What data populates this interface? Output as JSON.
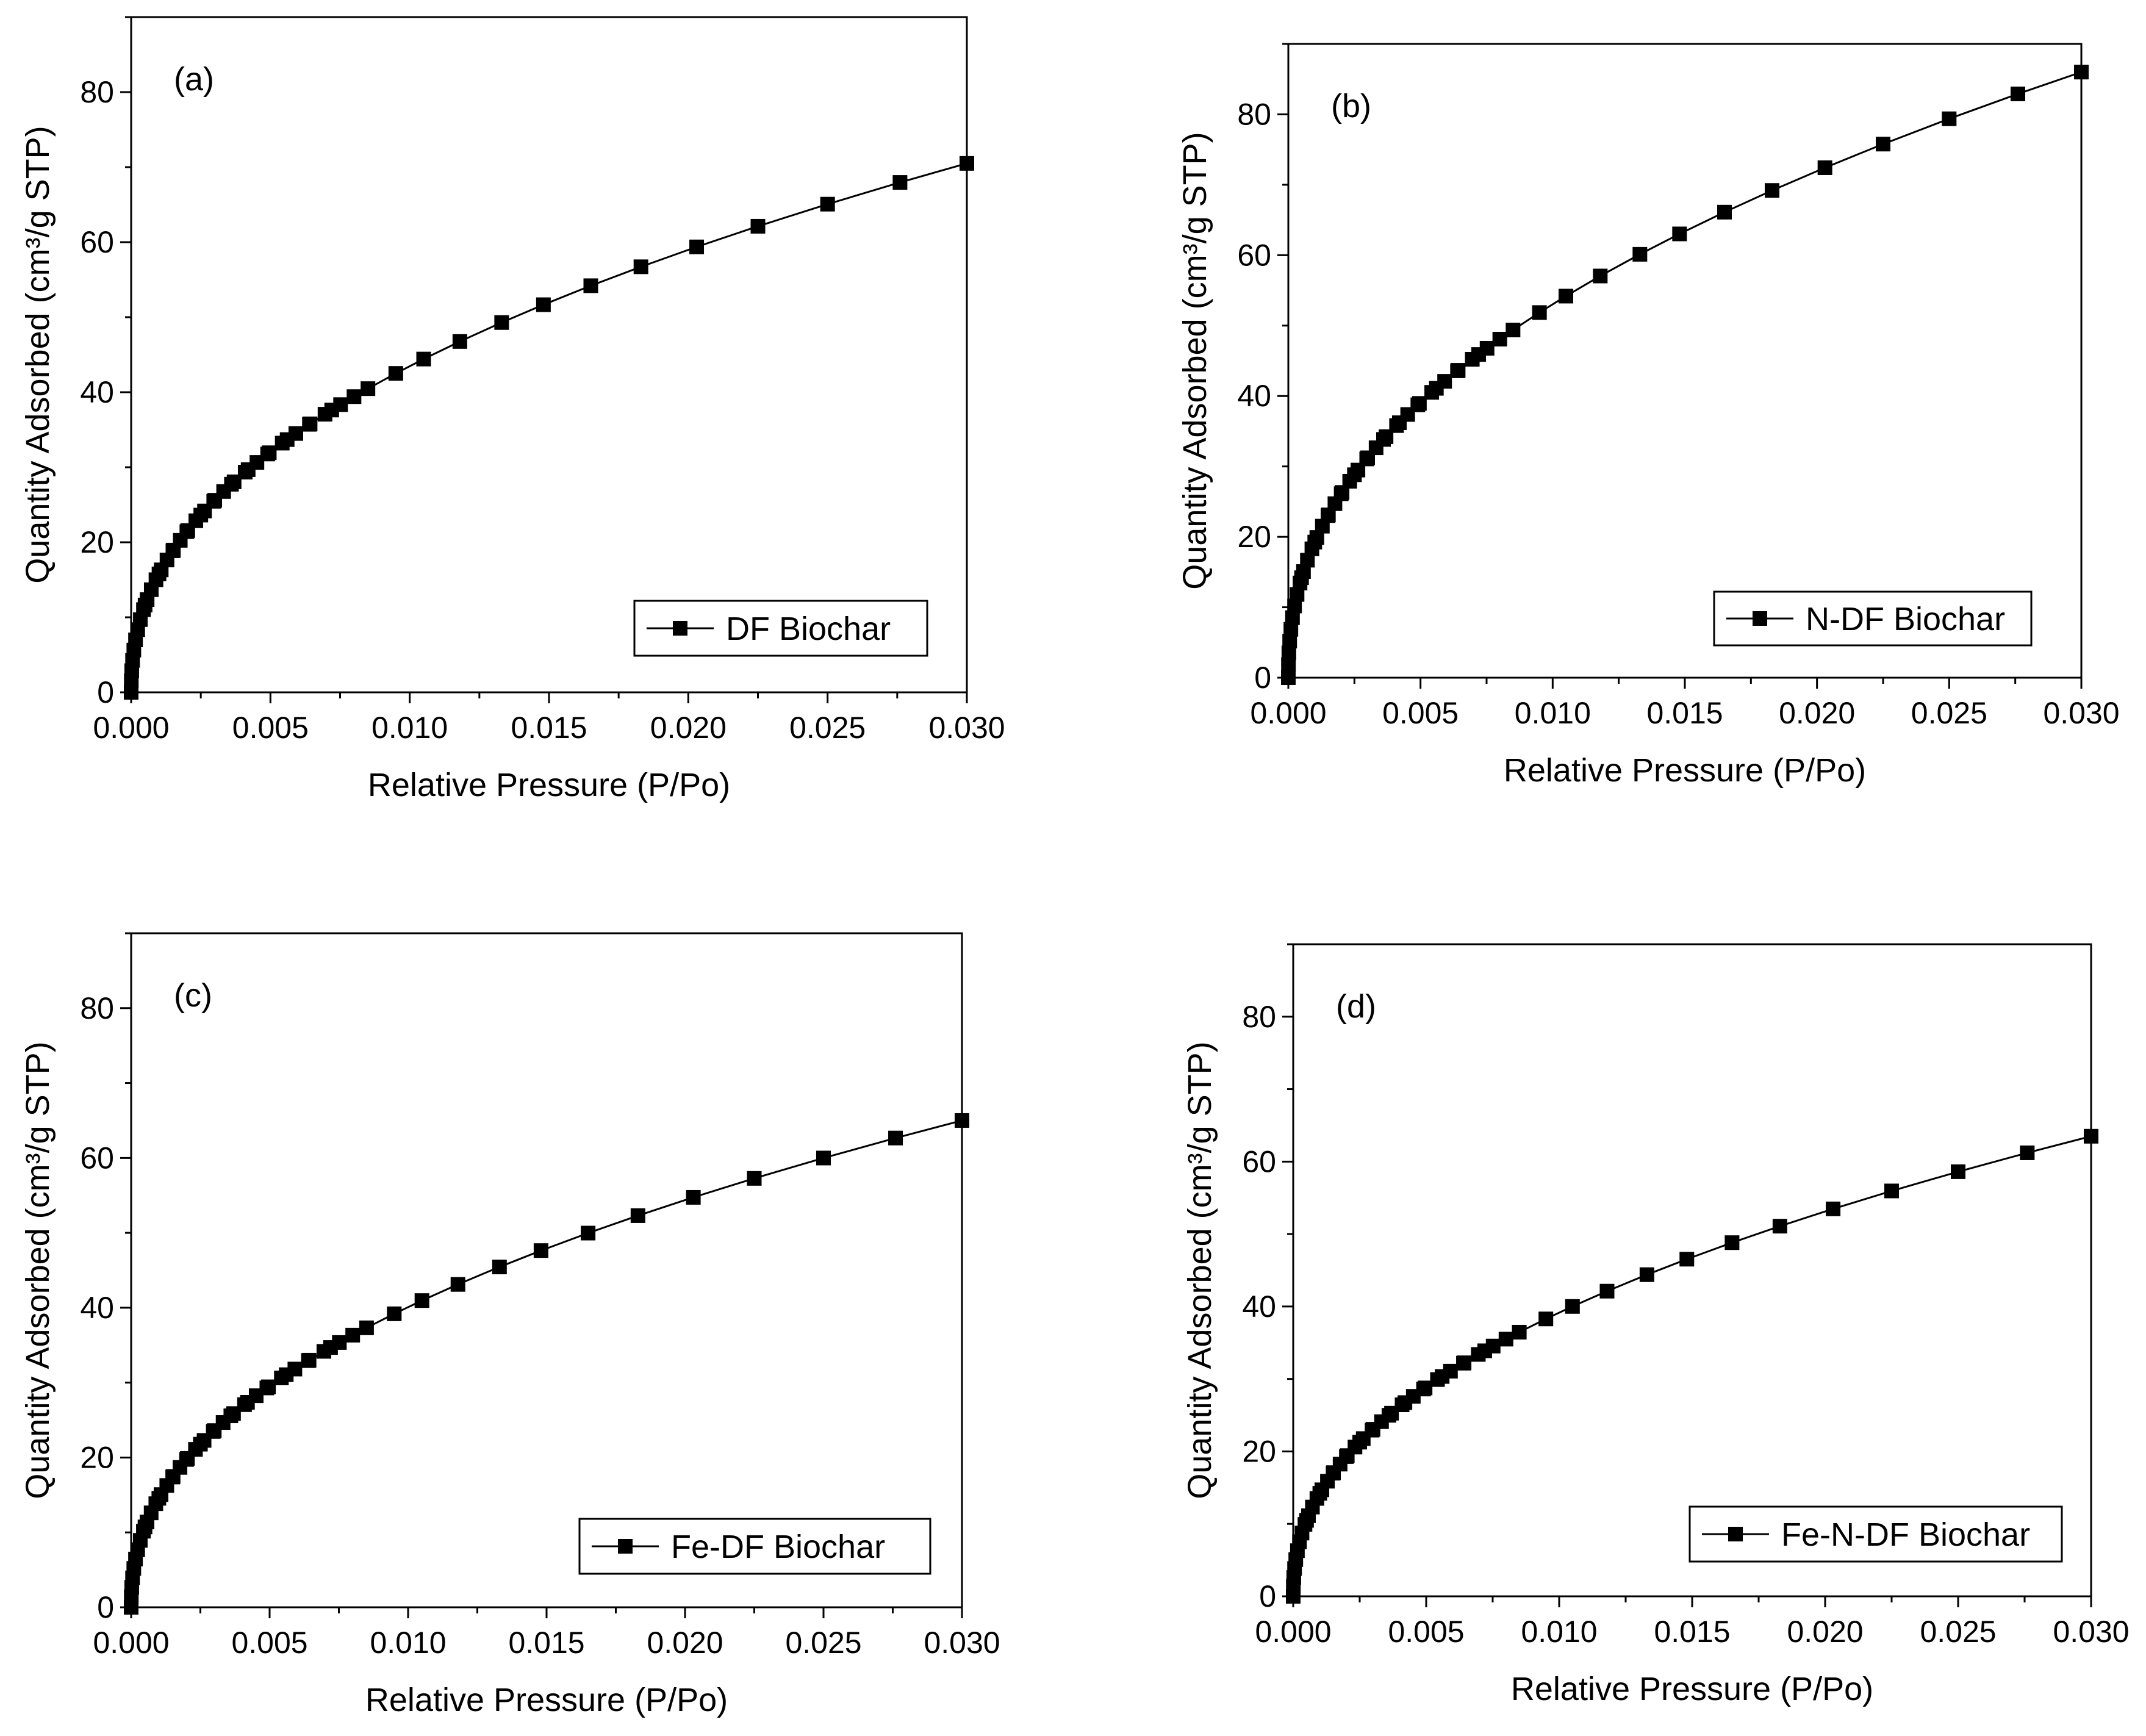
{
  "chart_data": [
    {
      "type": "scatter",
      "panel_label": "(a)",
      "xlabel": "Relative Pressure (P/Po)",
      "ylabel": "Quantity Adsorbed (cm³/g STP)",
      "xlim": [
        0,
        0.03
      ],
      "ylim": [
        0,
        90
      ],
      "xticks": [
        0,
        0.005,
        0.01,
        0.015,
        0.02,
        0.025,
        0.03
      ],
      "xtick_labels": [
        "0.000",
        "0.005",
        "0.010",
        "0.015",
        "0.020",
        "0.025",
        "0.030"
      ],
      "yticks": [
        0,
        20,
        40,
        60,
        80
      ],
      "ytick_labels": [
        "0",
        "20",
        "40",
        "60",
        "80"
      ],
      "legend_position": "bottom-right",
      "series": [
        {
          "name": "DF Biochar",
          "max_x": 0.03,
          "max_y": 70.5,
          "marker": "square",
          "line": true
        }
      ]
    },
    {
      "type": "scatter",
      "panel_label": "(b)",
      "xlabel": "Relative Pressure (P/Po)",
      "ylabel": "Quantity Adsorbed (cm³/g STP)",
      "xlim": [
        0,
        0.03
      ],
      "ylim": [
        0,
        90
      ],
      "xticks": [
        0,
        0.005,
        0.01,
        0.015,
        0.02,
        0.025,
        0.03
      ],
      "xtick_labels": [
        "0.000",
        "0.005",
        "0.010",
        "0.015",
        "0.020",
        "0.025",
        "0.030"
      ],
      "yticks": [
        0,
        20,
        40,
        60,
        80
      ],
      "ytick_labels": [
        "0",
        "20",
        "40",
        "60",
        "80"
      ],
      "legend_position": "bottom-right",
      "series": [
        {
          "name": "N-DF Biochar",
          "max_x": 0.03,
          "max_y": 86,
          "marker": "square",
          "line": true
        }
      ]
    },
    {
      "type": "scatter",
      "panel_label": "(c)",
      "xlabel": "Relative Pressure (P/Po)",
      "ylabel": "Quantity Adsorbed (cm³/g STP)",
      "xlim": [
        0,
        0.03
      ],
      "ylim": [
        0,
        90
      ],
      "xticks": [
        0,
        0.005,
        0.01,
        0.015,
        0.02,
        0.025,
        0.03
      ],
      "xtick_labels": [
        "0.000",
        "0.005",
        "0.010",
        "0.015",
        "0.020",
        "0.025",
        "0.030"
      ],
      "yticks": [
        0,
        20,
        40,
        60,
        80
      ],
      "ytick_labels": [
        "0",
        "20",
        "40",
        "60",
        "80"
      ],
      "legend_position": "bottom-right",
      "series": [
        {
          "name": "Fe-DF Biochar",
          "max_x": 0.03,
          "max_y": 65,
          "marker": "square",
          "line": true
        }
      ]
    },
    {
      "type": "scatter",
      "panel_label": "(d)",
      "xlabel": "Relative Pressure (P/Po)",
      "ylabel": "Quantity Adsorbed (cm³/g STP)",
      "xlim": [
        0,
        0.03
      ],
      "ylim": [
        0,
        90
      ],
      "xticks": [
        0,
        0.005,
        0.01,
        0.015,
        0.02,
        0.025,
        0.03
      ],
      "xtick_labels": [
        "0.000",
        "0.005",
        "0.010",
        "0.015",
        "0.020",
        "0.025",
        "0.030"
      ],
      "yticks": [
        0,
        20,
        40,
        60,
        80
      ],
      "ytick_labels": [
        "0",
        "20",
        "40",
        "60",
        "80"
      ],
      "legend_position": "bottom-right",
      "series": [
        {
          "name": "Fe-N-DF Biochar",
          "max_x": 0.03,
          "max_y": 63.5,
          "marker": "square",
          "line": true
        }
      ]
    }
  ]
}
